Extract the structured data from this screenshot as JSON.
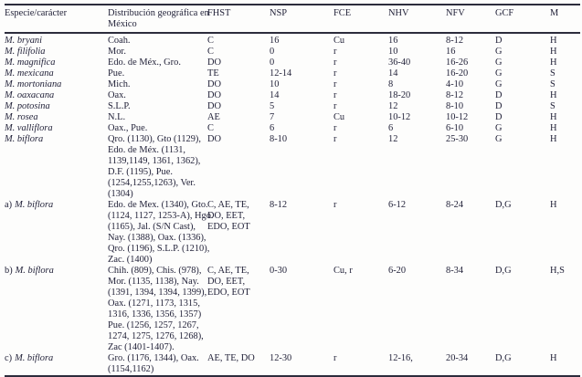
{
  "page": {
    "background": "#fdfdfc",
    "text_color": "#23233a",
    "rule_color": "#2c2c3c"
  },
  "table": {
    "columns": [
      "Especie/carácter",
      "Distribución geográfica en\nMéxico",
      "FHST",
      "NSP",
      "FCE",
      "NHV",
      "NFV",
      "GCF",
      "M"
    ],
    "rows": [
      {
        "prefix": "",
        "species": "M. bryani",
        "distribution": "Coah.",
        "fhst": "C",
        "nsp": "16",
        "fce": "Cu",
        "nhv": "16",
        "nfv": "8-12",
        "gcf": "D",
        "m": "H"
      },
      {
        "prefix": "",
        "species": "M. filifolia",
        "distribution": "Mor.",
        "fhst": "C",
        "nsp": "0",
        "fce": "r",
        "nhv": "10",
        "nfv": "16",
        "gcf": "G",
        "m": "H"
      },
      {
        "prefix": "",
        "species": "M. magnifica",
        "distribution": "Edo. de Méx., Gro.",
        "fhst": "DO",
        "nsp": "0",
        "fce": "r",
        "nhv": "36-40",
        "nfv": "16-26",
        "gcf": "G",
        "m": "H"
      },
      {
        "prefix": "",
        "species": "M. mexicana",
        "distribution": "Pue.",
        "fhst": "TE",
        "nsp": "12-14",
        "fce": "r",
        "nhv": "14",
        "nfv": "16-20",
        "gcf": "G",
        "m": "S"
      },
      {
        "prefix": "",
        "species": "M. mortoniana",
        "distribution": "Mich.",
        "fhst": "DO",
        "nsp": "10",
        "fce": "r",
        "nhv": "8",
        "nfv": "4-10",
        "gcf": "G",
        "m": "S"
      },
      {
        "prefix": "",
        "species": "M. oaxacana",
        "distribution": "Oax.",
        "fhst": "DO",
        "nsp": "14",
        "fce": "r",
        "nhv": "18-20",
        "nfv": "8-12",
        "gcf": "D",
        "m": "H"
      },
      {
        "prefix": "",
        "species": "M. potosina",
        "distribution": "S.L.P.",
        "fhst": "DO",
        "nsp": "5",
        "fce": "r",
        "nhv": "12",
        "nfv": "8-10",
        "gcf": "D",
        "m": "S"
      },
      {
        "prefix": "",
        "species": "M. rosea",
        "distribution": "N.L.",
        "fhst": "AE",
        "nsp": "7",
        "fce": "Cu",
        "nhv": "10-12",
        "nfv": "10-12",
        "gcf": "D",
        "m": "H"
      },
      {
        "prefix": "",
        "species": "M. valliflora",
        "distribution": "Oax., Pue.",
        "fhst": "C",
        "nsp": "6",
        "fce": "r",
        "nhv": "6",
        "nfv": "6-10",
        "gcf": "G",
        "m": "H"
      },
      {
        "prefix": "",
        "species": "M. biflora",
        "distribution": "Qro. (1130), Gto (1129),\nEdo. de Méx. (1131,\n1139,1149, 1361, 1362),\nD.F. (1195), Pue.\n(1254,1255,1263), Ver.\n(1304)",
        "fhst": "DO",
        "nsp": "8-10",
        "fce": "r",
        "nhv": "12",
        "nfv": "25-30",
        "gcf": "G",
        "m": "H"
      },
      {
        "prefix": "a)",
        "species": "M. biflora",
        "distribution": "Edo. de Mex. (1340), Gto.\n(1124, 1127, 1253-A), Hgo.\n(1165), Jal. (S/N Cast),\nNay. (1388), Oax. (1336),\nQro. (1196), S.L.P. (1210),\nZac. (1400)",
        "fhst": "C, AE, TE,\nDO, EET,\nEDO, EOT",
        "nsp": "8-12",
        "fce": "r",
        "nhv": "6-12",
        "nfv": "8-24",
        "gcf": "D,G",
        "m": "H"
      },
      {
        "prefix": "b)",
        "species": "M. biflora",
        "distribution": "Chih. (809), Chis. (978),\nMor. (1135, 1138), Nay.\n(1391, 1394, 1394, 1399),\nOax. (1271, 1173, 1315,\n1316, 1336, 1356, 1357)\nPue. (1256, 1257, 1267,\n1274, 1275, 1276, 1268),\nZac (1401-1407).",
        "fhst": "C, AE, TE,\nDO, EET,\nEDO, EOT",
        "nsp": "0-30",
        "fce": "Cu, r",
        "nhv": "6-20",
        "nfv": "8-34",
        "gcf": "D,G",
        "m": "H,S"
      },
      {
        "prefix": "c)",
        "species": "M. biflora",
        "distribution": "Gro. (1176, 1344), Oax.\n(1154,1162)",
        "fhst": "AE, TE, DO",
        "nsp": "12-30",
        "fce": "r",
        "nhv": "12-16,",
        "nfv": "20-34",
        "gcf": "D,G",
        "m": "H"
      }
    ]
  }
}
